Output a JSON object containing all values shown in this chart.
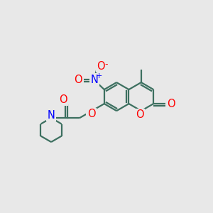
{
  "bg_color": "#e8e8e8",
  "bond_color": "#3d7060",
  "bond_width": 1.6,
  "atom_colors": {
    "O": "#ff0000",
    "N": "#0000ff"
  },
  "font_size_atom": 10.5
}
